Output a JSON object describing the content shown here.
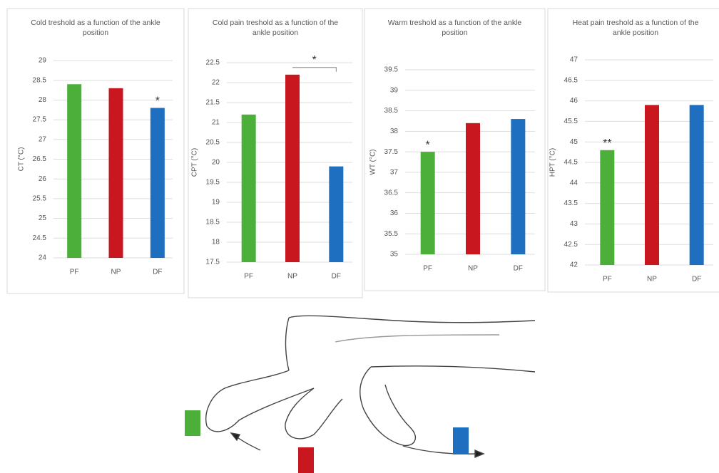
{
  "chart_data": [
    {
      "type": "bar",
      "title": "Cold treshold as a function of the ankle position",
      "y_label": "CT (°C)",
      "categories": [
        "PF",
        "NP",
        "DF"
      ],
      "values": [
        28.4,
        28.3,
        27.8
      ],
      "colors": [
        "#4caf3a",
        "#c8171f",
        "#1f6fc0"
      ],
      "ylim": [
        24,
        29
      ],
      "yticks": [
        24,
        24.5,
        25,
        25.5,
        26,
        26.5,
        27,
        27.5,
        28,
        28.5,
        29
      ],
      "grid": true,
      "annotations": [
        {
          "text": "*",
          "at": "DF"
        }
      ]
    },
    {
      "type": "bar",
      "title": "Cold pain treshold as a function of the ankle position",
      "y_label": "CPT (°C)",
      "categories": [
        "PF",
        "NP",
        "DF"
      ],
      "values": [
        21.2,
        22.2,
        19.9
      ],
      "colors": [
        "#4caf3a",
        "#c8171f",
        "#1f6fc0"
      ],
      "ylim": [
        17.5,
        22.5
      ],
      "yticks": [
        17.5,
        18,
        18.5,
        19,
        19.5,
        20,
        20.5,
        21,
        21.5,
        22,
        22.5
      ],
      "grid": true,
      "annotations": [
        {
          "text": "*",
          "from": "NP",
          "to": "DF"
        }
      ]
    },
    {
      "type": "bar",
      "title": "Warm treshold as a function of the ankle position",
      "y_label": "WT (°C)",
      "categories": [
        "PF",
        "NP",
        "DF"
      ],
      "values": [
        37.5,
        38.2,
        38.3
      ],
      "colors": [
        "#4caf3a",
        "#c8171f",
        "#1f6fc0"
      ],
      "ylim": [
        35,
        39.5
      ],
      "yticks": [
        35,
        35.5,
        36,
        36.5,
        37,
        37.5,
        38,
        38.5,
        39,
        39.5
      ],
      "grid": true,
      "annotations": [
        {
          "text": "*",
          "at": "PF"
        }
      ]
    },
    {
      "type": "bar",
      "title": "Heat pain treshold as a function of the ankle position",
      "y_label": "HPT (°C)",
      "categories": [
        "PF",
        "NP",
        "DF"
      ],
      "values": [
        44.8,
        45.9,
        45.9
      ],
      "colors": [
        "#4caf3a",
        "#c8171f",
        "#1f6fc0"
      ],
      "ylim": [
        42,
        47
      ],
      "yticks": [
        42,
        42.5,
        43,
        43.5,
        44,
        44.5,
        45,
        45.5,
        46,
        46.5,
        47
      ],
      "grid": true,
      "annotations": [
        {
          "text": "**",
          "at": "PF"
        }
      ]
    }
  ]
}
